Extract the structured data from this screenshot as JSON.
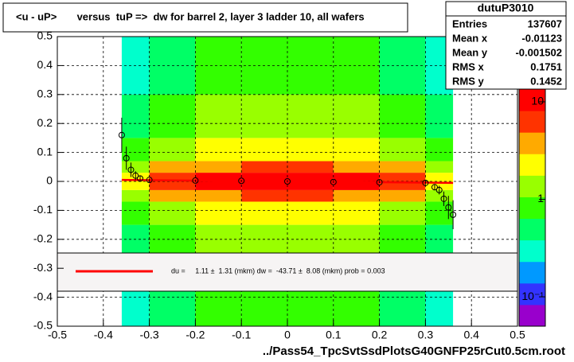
{
  "chart_data": {
    "type": "heatmap-profile",
    "title": "<u - uP>       versus  tuP =>  dw for barrel 2, layer 3 ladder 10, all wafers",
    "x_label": "../Pass54_TpcSvtSsdPlotsG40GNFP25rCut0.5cm.root",
    "xlim": [
      -0.5,
      0.5
    ],
    "ylim": [
      -0.5,
      0.5
    ],
    "xticks": [
      -0.5,
      -0.4,
      -0.3,
      -0.2,
      -0.1,
      0,
      0.1,
      0.2,
      0.3,
      0.4,
      0.5
    ],
    "yticks": [
      -0.5,
      -0.4,
      -0.3,
      -0.2,
      -0.1,
      0,
      0.1,
      0.2,
      0.3,
      0.4,
      0.5
    ],
    "grid": true,
    "zlim": [
      0.05,
      13.5
    ],
    "zlog": true,
    "zticks": [
      {
        "value": 10,
        "label": "10"
      },
      {
        "value": 1,
        "label": "1"
      },
      {
        "value": 0.1,
        "label": "10⁻¹"
      }
    ],
    "palette": [
      "#9900cc",
      "#3333ff",
      "#0099ff",
      "#00ffcc",
      "#00ff66",
      "#33ff00",
      "#99ff00",
      "#ffff00",
      "#ffaa00",
      "#ff3300",
      "#ff0000"
    ],
    "x_bins": [
      -0.36,
      -0.3,
      -0.2,
      -0.1,
      0,
      0.1,
      0.2,
      0.3,
      0.36
    ],
    "y_bins": [
      -0.5,
      -0.3,
      -0.15,
      -0.07,
      -0.03,
      0.03,
      0.07,
      0.15,
      0.3,
      0.5
    ],
    "z": [
      [
        0.3,
        0.6,
        0.7,
        0.7,
        0.7,
        0.7,
        0.6,
        0.3
      ],
      [
        0.5,
        0.9,
        1.1,
        1.2,
        1.2,
        1.1,
        0.9,
        0.5
      ],
      [
        0.8,
        1.6,
        2.0,
        2.2,
        2.2,
        2.0,
        1.6,
        0.8
      ],
      [
        1.4,
        3.0,
        4.5,
        5.0,
        5.0,
        4.5,
        3.0,
        1.4
      ],
      [
        2.5,
        7.0,
        11,
        12,
        12,
        11,
        7.0,
        2.5
      ],
      [
        1.4,
        3.0,
        4.5,
        5.0,
        5.0,
        4.5,
        3.0,
        1.4
      ],
      [
        0.8,
        1.6,
        2.0,
        2.2,
        2.2,
        2.0,
        1.6,
        0.8
      ],
      [
        0.5,
        0.9,
        1.1,
        1.2,
        1.2,
        1.1,
        0.9,
        0.5
      ],
      [
        0.3,
        0.6,
        0.7,
        0.7,
        0.7,
        0.7,
        0.6,
        0.3
      ]
    ],
    "profile": {
      "x": [
        -0.36,
        -0.35,
        -0.34,
        -0.33,
        -0.32,
        -0.3,
        -0.2,
        -0.1,
        0,
        0.1,
        0.2,
        0.3,
        0.32,
        0.33,
        0.34,
        0.35,
        0.36
      ],
      "values": [
        0.16,
        0.08,
        0.04,
        0.02,
        0.01,
        0.005,
        0.003,
        0.002,
        0,
        -0.002,
        -0.003,
        -0.005,
        -0.02,
        -0.03,
        -0.06,
        -0.09,
        -0.115
      ],
      "errors": [
        0.06,
        0.04,
        0.025,
        0.015,
        0.01,
        0.005,
        0.003,
        0.003,
        0.003,
        0.003,
        0.003,
        0.005,
        0.01,
        0.015,
        0.025,
        0.04,
        0.05
      ]
    },
    "fit": {
      "x": [
        -0.36,
        0.36
      ],
      "values": [
        0.005,
        -0.005
      ],
      "color": "#ff0000"
    },
    "legend_text": "du =     1.11 ±  1.31 (mkm) dw =  -43.71 ±  8.08 (mkm) prob = 0.003",
    "stats": {
      "name": "dutuP3010",
      "rows": [
        [
          "Entries",
          "137607"
        ],
        [
          "Mean x",
          "-0.01123"
        ],
        [
          "Mean y",
          "-0.001502"
        ],
        [
          "RMS x",
          "0.1751"
        ],
        [
          "RMS y",
          "0.1452"
        ]
      ]
    }
  }
}
